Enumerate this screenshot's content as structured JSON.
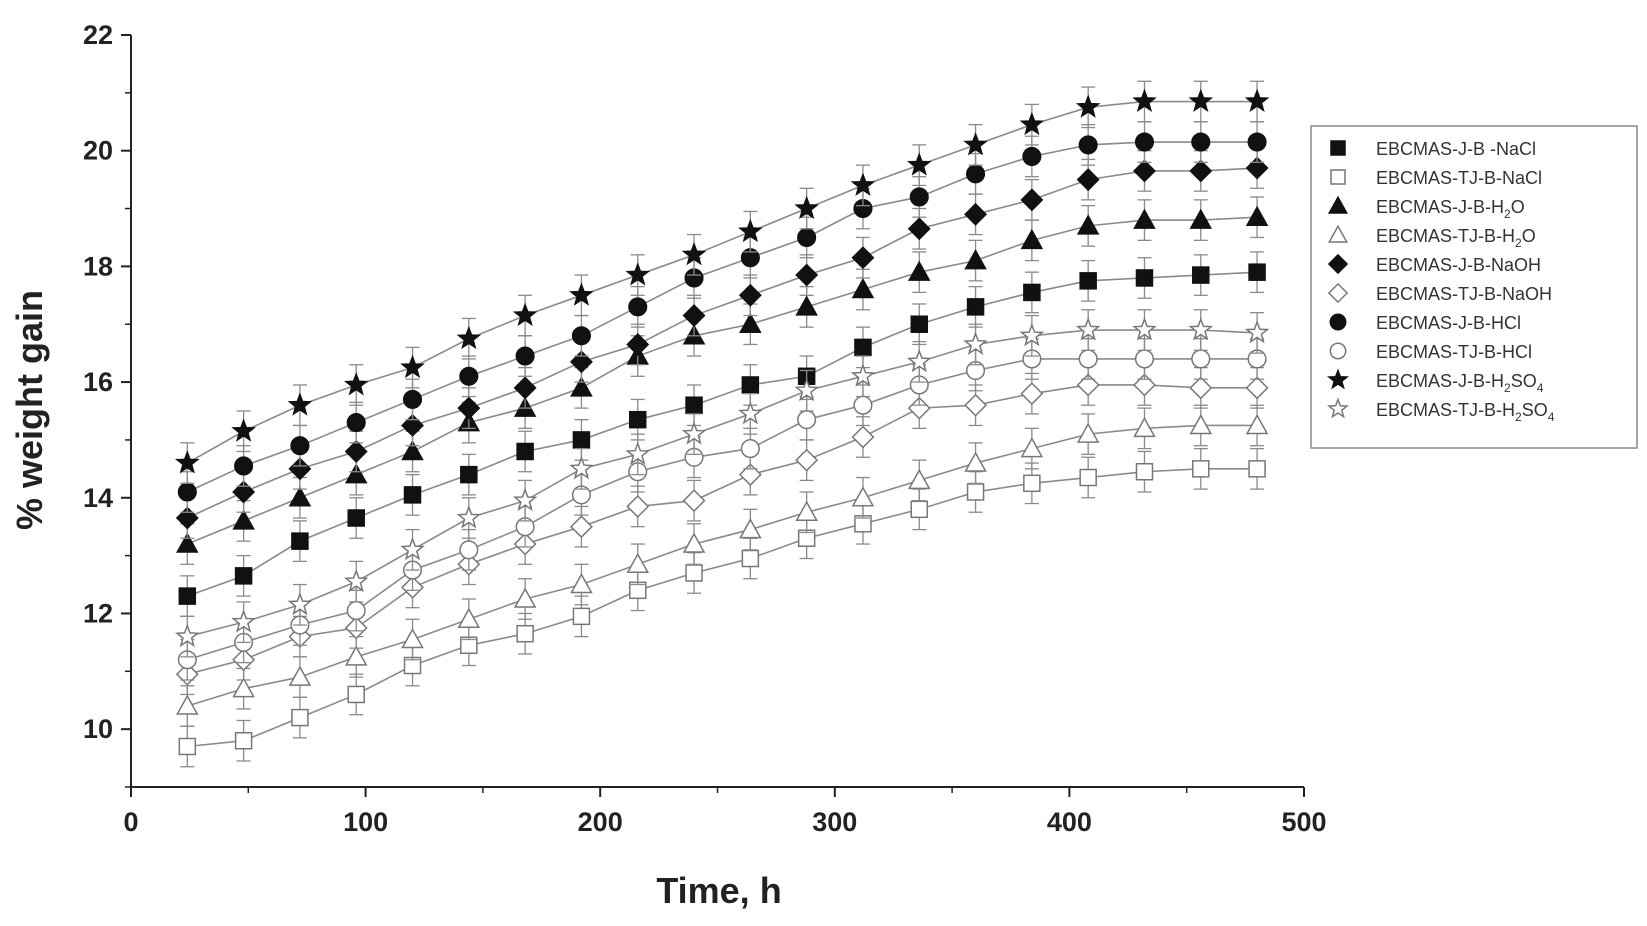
{
  "chart_data": {
    "type": "scatter",
    "title": "",
    "xlabel": "Time, h",
    "ylabel": "% weight gain",
    "xlim": [
      0,
      500
    ],
    "ylim": [
      9,
      22
    ],
    "xticks": [
      "0",
      "100",
      "200",
      "300",
      "400",
      "500"
    ],
    "yticks": [
      "10",
      "12",
      "14",
      "16",
      "18",
      "20",
      "22"
    ],
    "legend_position": "right",
    "grid": false,
    "error_bar": 0.35,
    "x": [
      24,
      48,
      72,
      96,
      120,
      144,
      168,
      192,
      216,
      240,
      264,
      288,
      312,
      336,
      360,
      384,
      408,
      432,
      456,
      480
    ],
    "series": [
      {
        "name_parts": [
          "EBCMAS-J-B -NaCl"
        ],
        "marker": "square",
        "filled": true,
        "values": [
          12.3,
          12.65,
          13.25,
          13.65,
          14.05,
          14.4,
          14.8,
          15.0,
          15.35,
          15.6,
          15.95,
          16.1,
          16.6,
          17.0,
          17.3,
          17.55,
          17.75,
          17.8,
          17.85,
          17.9
        ]
      },
      {
        "name_parts": [
          "EBCMAS-TJ-B-NaCl"
        ],
        "marker": "square",
        "filled": false,
        "values": [
          9.7,
          9.8,
          10.2,
          10.6,
          11.1,
          11.45,
          11.65,
          11.95,
          12.4,
          12.7,
          12.95,
          13.3,
          13.55,
          13.8,
          14.1,
          14.25,
          14.35,
          14.45,
          14.5,
          14.5
        ]
      },
      {
        "name_parts": [
          "EBCMAS-J-B-H",
          "2",
          "O"
        ],
        "marker": "triangle",
        "filled": true,
        "values": [
          13.2,
          13.6,
          14.0,
          14.4,
          14.8,
          15.3,
          15.55,
          15.9,
          16.45,
          16.8,
          17.0,
          17.3,
          17.6,
          17.9,
          18.1,
          18.45,
          18.7,
          18.8,
          18.8,
          18.85
        ]
      },
      {
        "name_parts": [
          "EBCMAS-TJ-B-H",
          "2",
          "O"
        ],
        "marker": "triangle",
        "filled": false,
        "values": [
          10.4,
          10.7,
          10.9,
          11.25,
          11.55,
          11.9,
          12.25,
          12.5,
          12.85,
          13.2,
          13.45,
          13.75,
          14.0,
          14.3,
          14.6,
          14.85,
          15.1,
          15.2,
          15.25,
          15.25
        ]
      },
      {
        "name_parts": [
          "EBCMAS-J-B-NaOH"
        ],
        "marker": "diamond",
        "filled": true,
        "values": [
          13.65,
          14.1,
          14.5,
          14.8,
          15.25,
          15.55,
          15.9,
          16.35,
          16.65,
          17.15,
          17.5,
          17.85,
          18.15,
          18.65,
          18.9,
          19.15,
          19.5,
          19.65,
          19.65,
          19.7
        ]
      },
      {
        "name_parts": [
          "EBCMAS-TJ-B-NaOH"
        ],
        "marker": "diamond",
        "filled": false,
        "values": [
          10.95,
          11.2,
          11.6,
          11.75,
          12.45,
          12.85,
          13.2,
          13.5,
          13.85,
          13.95,
          14.4,
          14.65,
          15.05,
          15.55,
          15.6,
          15.8,
          15.95,
          15.95,
          15.9,
          15.9
        ]
      },
      {
        "name_parts": [
          "EBCMAS-J-B-HCl"
        ],
        "marker": "circle",
        "filled": true,
        "values": [
          14.1,
          14.55,
          14.9,
          15.3,
          15.7,
          16.1,
          16.45,
          16.8,
          17.3,
          17.8,
          18.15,
          18.5,
          19.0,
          19.2,
          19.6,
          19.9,
          20.1,
          20.15,
          20.15,
          20.15
        ]
      },
      {
        "name_parts": [
          "EBCMAS-TJ-B-HCl"
        ],
        "marker": "circle",
        "filled": false,
        "values": [
          11.2,
          11.5,
          11.8,
          12.05,
          12.75,
          13.1,
          13.5,
          14.05,
          14.45,
          14.7,
          14.85,
          15.35,
          15.6,
          15.95,
          16.2,
          16.4,
          16.4,
          16.4,
          16.4,
          16.4
        ]
      },
      {
        "name_parts": [
          "EBCMAS-J-B-H",
          "2",
          "SO",
          "4",
          ""
        ],
        "marker": "star",
        "filled": true,
        "values": [
          14.6,
          15.15,
          15.6,
          15.95,
          16.25,
          16.75,
          17.15,
          17.5,
          17.85,
          18.2,
          18.6,
          19.0,
          19.4,
          19.75,
          20.1,
          20.45,
          20.75,
          20.85,
          20.85,
          20.85
        ]
      },
      {
        "name_parts": [
          "EBCMAS-TJ-B-H",
          "2",
          "SO",
          "4",
          ""
        ],
        "marker": "star",
        "filled": false,
        "values": [
          11.6,
          11.85,
          12.15,
          12.55,
          13.1,
          13.65,
          13.95,
          14.5,
          14.75,
          15.1,
          15.45,
          15.85,
          16.1,
          16.35,
          16.65,
          16.8,
          16.9,
          16.9,
          16.9,
          16.85
        ]
      }
    ]
  }
}
